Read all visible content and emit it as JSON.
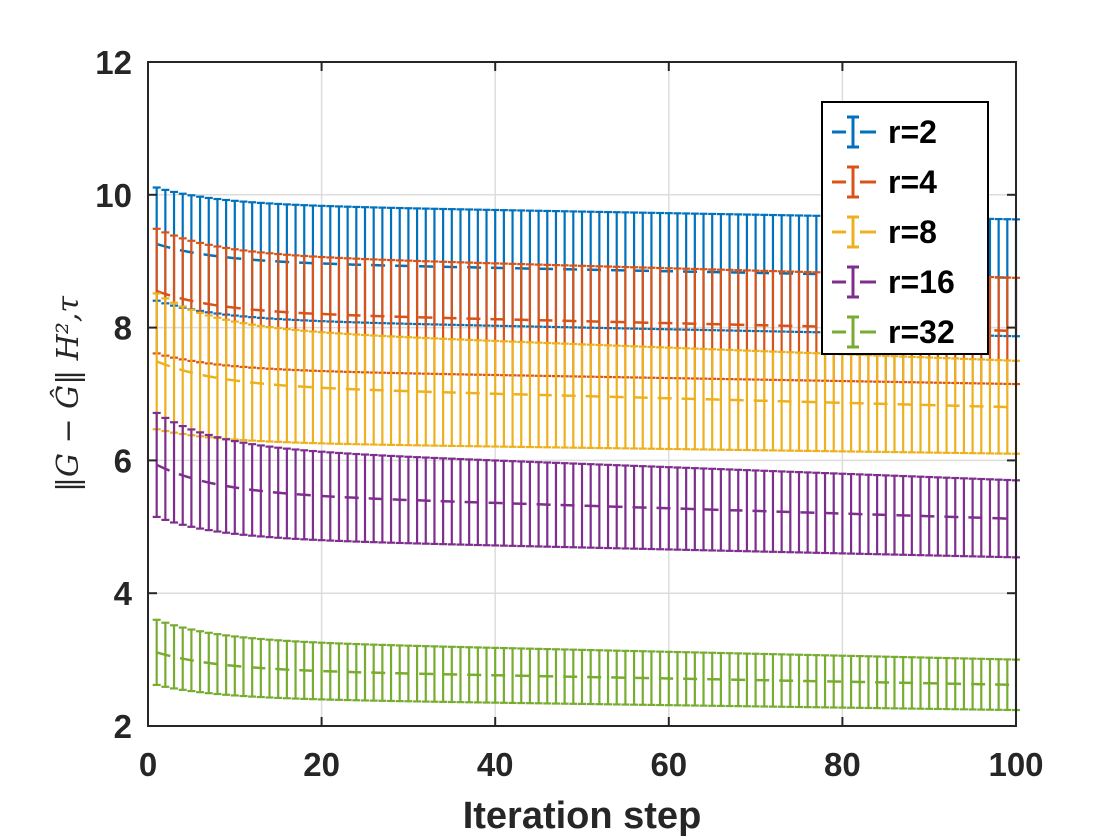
{
  "chart_data": {
    "type": "line",
    "title": "",
    "xlabel": "Iteration step",
    "ylabel": "‖G − Ĝ‖ H²,τ",
    "xlim": [
      0,
      100
    ],
    "ylim": [
      2,
      12
    ],
    "xticks": [
      "0",
      "20",
      "40",
      "60",
      "80",
      "100"
    ],
    "yticks": [
      "2",
      "4",
      "6",
      "8",
      "10",
      "12"
    ],
    "grid": true,
    "legend_position": "top-right",
    "series": [
      {
        "name": "r=2",
        "color": "#0072BD",
        "mean_start": 9.3,
        "mean_end": 8.75,
        "err_start": 0.85,
        "err_end": 0.88
      },
      {
        "name": "r=4",
        "color": "#D95319",
        "mean_start": 8.6,
        "mean_end": 7.95,
        "err_start": 0.95,
        "err_end": 0.8
      },
      {
        "name": "r=8",
        "color": "#EDB120",
        "mean_start": 7.55,
        "mean_end": 6.8,
        "err_start": 1.05,
        "err_end": 0.7
      },
      {
        "name": "r=16",
        "color": "#7E2F8E",
        "mean_start": 6.0,
        "mean_end": 5.12,
        "err_start": 0.8,
        "err_end": 0.58
      },
      {
        "name": "r=32",
        "color": "#77AC30",
        "mean_start": 3.15,
        "mean_end": 2.62,
        "err_start": 0.5,
        "err_end": 0.38
      }
    ]
  }
}
